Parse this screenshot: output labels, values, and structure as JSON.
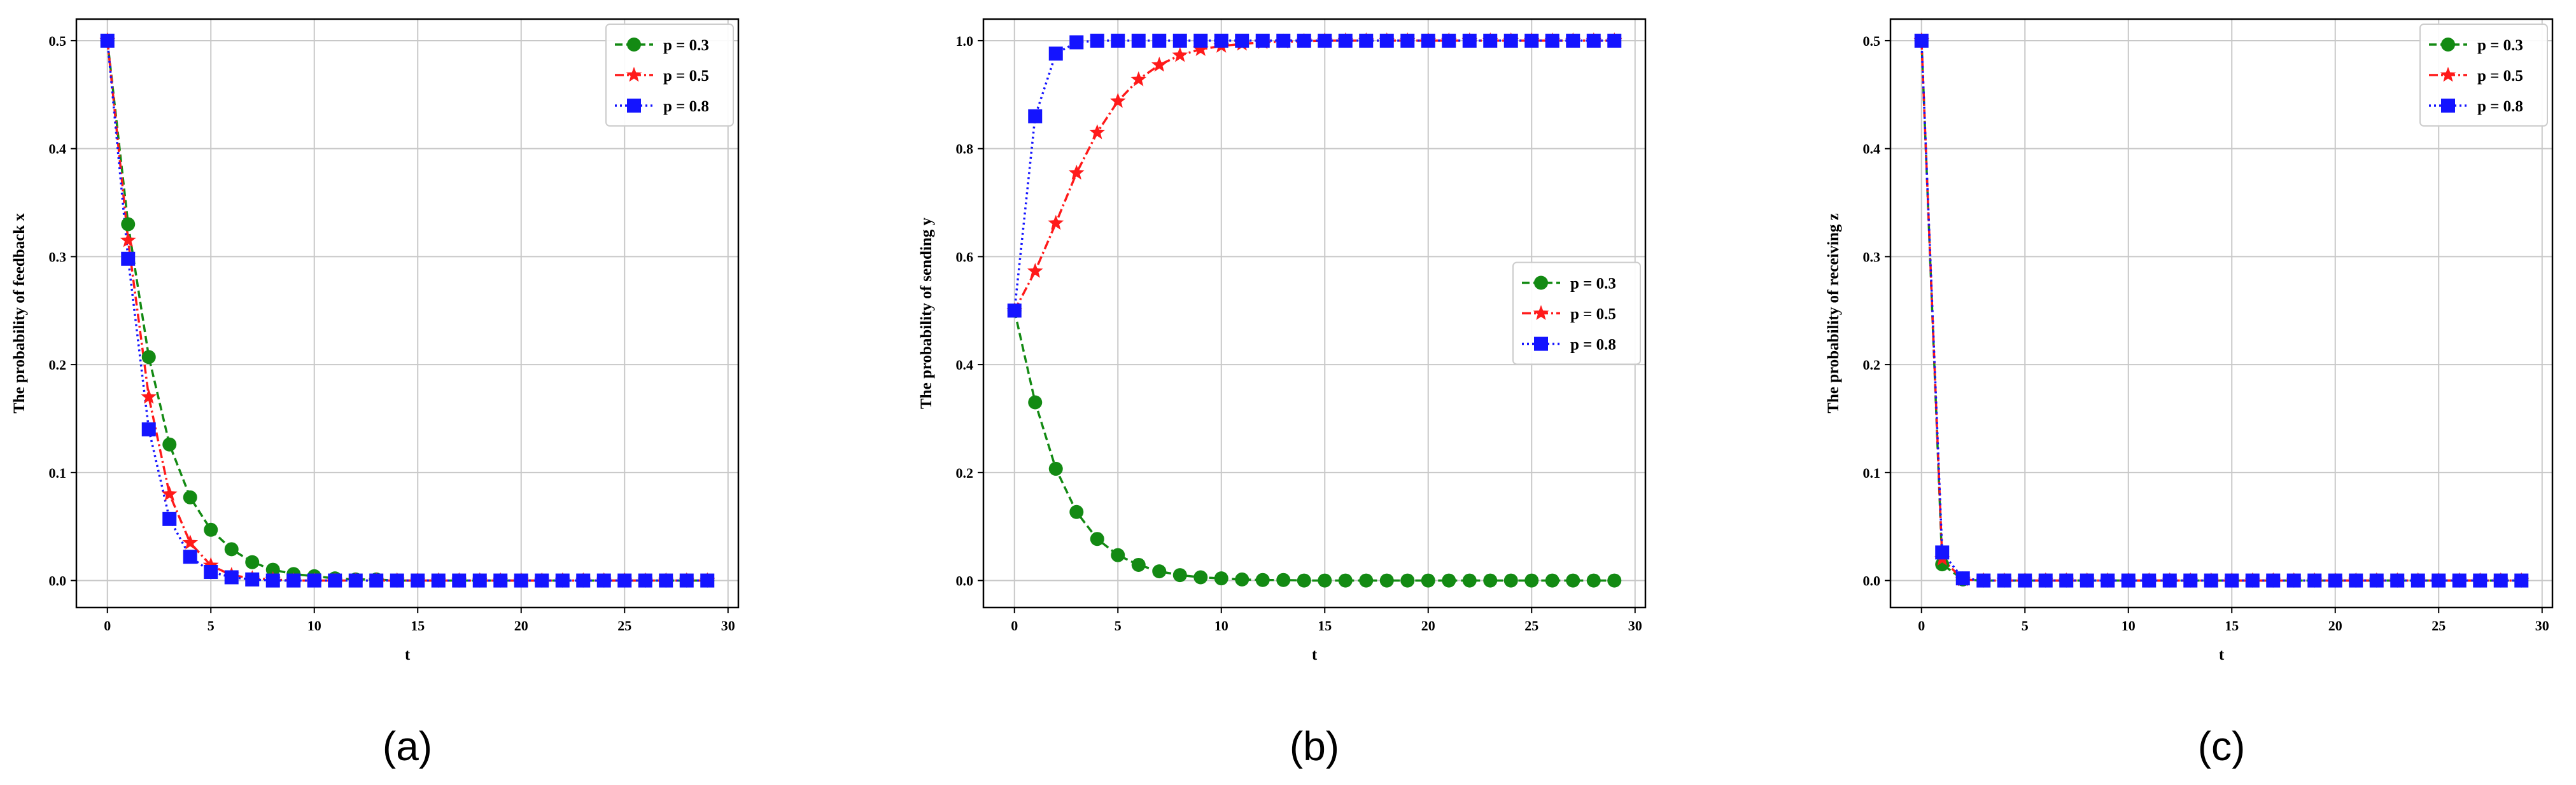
{
  "colors": {
    "p03": "#138a13",
    "p05": "#ff1a1a",
    "p08": "#1414ff",
    "grid": "#c8c8c8",
    "axis": "#000000"
  },
  "chart_data": [
    {
      "type": "line",
      "caption": "(a)",
      "xlabel": "t",
      "ylabel": "The probability of feedback x",
      "xlim": [
        -1.5,
        30.5
      ],
      "ylim": [
        -0.025,
        0.52
      ],
      "xticks": [
        0,
        5,
        10,
        15,
        20,
        25,
        30
      ],
      "yticks": [
        0.0,
        0.1,
        0.2,
        0.3,
        0.4,
        0.5
      ],
      "ytick_labels": [
        "0.0",
        "0.1",
        "0.2",
        "0.3",
        "0.4",
        "0.5"
      ],
      "grid": true,
      "legend_position": "top-right",
      "x": [
        0,
        1,
        2,
        3,
        4,
        5,
        6,
        7,
        8,
        9,
        10,
        11,
        12,
        13,
        14,
        15,
        16,
        17,
        18,
        19,
        20,
        21,
        22,
        23,
        24,
        25,
        26,
        27,
        28,
        29
      ],
      "series": [
        {
          "name": "p = 0.3",
          "color": "#138a13",
          "marker": "circle",
          "dash": "12,6",
          "values": [
            0.5,
            0.33,
            0.207,
            0.126,
            0.077,
            0.047,
            0.029,
            0.017,
            0.01,
            0.006,
            0.004,
            0.002,
            0.001,
            0.001,
            0,
            0,
            0,
            0,
            0,
            0,
            0,
            0,
            0,
            0,
            0,
            0,
            0,
            0,
            0,
            0
          ]
        },
        {
          "name": "p = 0.5",
          "color": "#ff1a1a",
          "marker": "star",
          "dash": "14,5,3,5",
          "values": [
            0.5,
            0.315,
            0.17,
            0.08,
            0.035,
            0.014,
            0.005,
            0.002,
            0.001,
            0,
            0,
            0,
            0,
            0,
            0,
            0,
            0,
            0,
            0,
            0,
            0,
            0,
            0,
            0,
            0,
            0,
            0,
            0,
            0,
            0
          ]
        },
        {
          "name": "p = 0.8",
          "color": "#1414ff",
          "marker": "square",
          "dash": "3,5",
          "values": [
            0.5,
            0.298,
            0.14,
            0.057,
            0.022,
            0.008,
            0.003,
            0.001,
            0,
            0,
            0,
            0,
            0,
            0,
            0,
            0,
            0,
            0,
            0,
            0,
            0,
            0,
            0,
            0,
            0,
            0,
            0,
            0,
            0,
            0
          ]
        }
      ]
    },
    {
      "type": "line",
      "caption": "(b)",
      "xlabel": "t",
      "ylabel": "The probability of sending y",
      "xlim": [
        -1.5,
        30.5
      ],
      "ylim": [
        -0.05,
        1.04
      ],
      "xticks": [
        0,
        5,
        10,
        15,
        20,
        25,
        30
      ],
      "yticks": [
        0.0,
        0.2,
        0.4,
        0.6,
        0.8,
        1.0
      ],
      "ytick_labels": [
        "0.0",
        "0.2",
        "0.4",
        "0.6",
        "0.8",
        "1.0"
      ],
      "grid": true,
      "legend_position": "center-right",
      "x": [
        0,
        1,
        2,
        3,
        4,
        5,
        6,
        7,
        8,
        9,
        10,
        11,
        12,
        13,
        14,
        15,
        16,
        17,
        18,
        19,
        20,
        21,
        22,
        23,
        24,
        25,
        26,
        27,
        28,
        29
      ],
      "series": [
        {
          "name": "p = 0.3",
          "color": "#138a13",
          "marker": "circle",
          "dash": "12,6",
          "values": [
            0.5,
            0.33,
            0.207,
            0.127,
            0.077,
            0.047,
            0.029,
            0.017,
            0.01,
            0.006,
            0.004,
            0.002,
            0.001,
            0.001,
            0,
            0,
            0,
            0,
            0,
            0,
            0,
            0,
            0,
            0,
            0,
            0,
            0,
            0,
            0,
            0
          ]
        },
        {
          "name": "p = 0.5",
          "color": "#ff1a1a",
          "marker": "star",
          "dash": "14,5,3,5",
          "values": [
            0.5,
            0.573,
            0.662,
            0.755,
            0.83,
            0.888,
            0.928,
            0.955,
            0.973,
            0.984,
            0.99,
            0.994,
            0.997,
            0.998,
            0.999,
            1,
            1,
            1,
            1,
            1,
            1,
            1,
            1,
            1,
            1,
            1,
            1,
            1,
            1,
            1
          ]
        },
        {
          "name": "p = 0.8",
          "color": "#1414ff",
          "marker": "square",
          "dash": "3,5",
          "values": [
            0.5,
            0.86,
            0.976,
            0.997,
            1,
            1,
            1,
            1,
            1,
            1,
            1,
            1,
            1,
            1,
            1,
            1,
            1,
            1,
            1,
            1,
            1,
            1,
            1,
            1,
            1,
            1,
            1,
            1,
            1,
            1
          ]
        }
      ]
    },
    {
      "type": "line",
      "caption": "(c)",
      "xlabel": "t",
      "ylabel": "The probability of receiving z",
      "xlim": [
        -1.5,
        30.5
      ],
      "ylim": [
        -0.025,
        0.52
      ],
      "xticks": [
        0,
        5,
        10,
        15,
        20,
        25,
        30
      ],
      "yticks": [
        0.0,
        0.1,
        0.2,
        0.3,
        0.4,
        0.5
      ],
      "ytick_labels": [
        "0.0",
        "0.1",
        "0.2",
        "0.3",
        "0.4",
        "0.5"
      ],
      "grid": true,
      "legend_position": "top-right",
      "x": [
        0,
        1,
        2,
        3,
        4,
        5,
        6,
        7,
        8,
        9,
        10,
        11,
        12,
        13,
        14,
        15,
        16,
        17,
        18,
        19,
        20,
        21,
        22,
        23,
        24,
        25,
        26,
        27,
        28,
        29
      ],
      "series": [
        {
          "name": "p = 0.3",
          "color": "#138a13",
          "marker": "circle",
          "dash": "12,6",
          "values": [
            0.5,
            0.015,
            0.001,
            0,
            0,
            0,
            0,
            0,
            0,
            0,
            0,
            0,
            0,
            0,
            0,
            0,
            0,
            0,
            0,
            0,
            0,
            0,
            0,
            0,
            0,
            0,
            0,
            0,
            0,
            0
          ]
        },
        {
          "name": "p = 0.5",
          "color": "#ff1a1a",
          "marker": "star",
          "dash": "14,5,3,5",
          "values": [
            0.5,
            0.02,
            0.001,
            0,
            0,
            0,
            0,
            0,
            0,
            0,
            0,
            0,
            0,
            0,
            0,
            0,
            0,
            0,
            0,
            0,
            0,
            0,
            0,
            0,
            0,
            0,
            0,
            0,
            0,
            0
          ]
        },
        {
          "name": "p = 0.8",
          "color": "#1414ff",
          "marker": "square",
          "dash": "3,5",
          "values": [
            0.5,
            0.026,
            0.002,
            0,
            0,
            0,
            0,
            0,
            0,
            0,
            0,
            0,
            0,
            0,
            0,
            0,
            0,
            0,
            0,
            0,
            0,
            0,
            0,
            0,
            0,
            0,
            0,
            0,
            0,
            0
          ]
        }
      ]
    }
  ]
}
